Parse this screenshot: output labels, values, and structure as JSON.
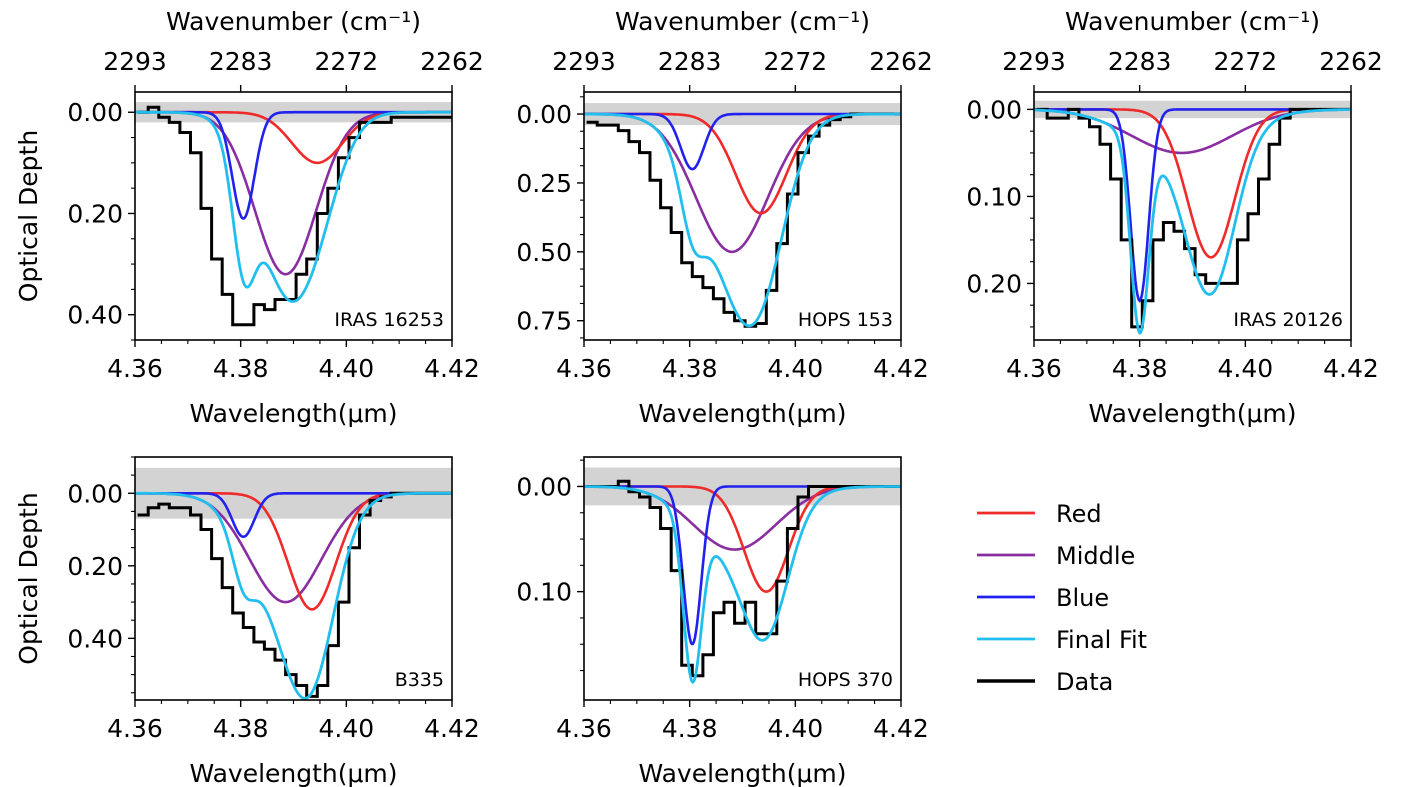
{
  "colors": {
    "red": "#ee2a2a",
    "middle": "#882ea0",
    "blue": "#2222ee",
    "final": "#22bfee",
    "data": "#000000",
    "band": "#d3d3d3"
  },
  "legend": {
    "placement": "right",
    "items": [
      {
        "key": "red",
        "label": "Red"
      },
      {
        "key": "middle",
        "label": "Middle"
      },
      {
        "key": "blue",
        "label": "Blue"
      },
      {
        "key": "final",
        "label": "Final Fit"
      },
      {
        "key": "data",
        "label": "Data"
      }
    ]
  },
  "chart_data": [
    {
      "type": "line",
      "panel": 1,
      "source": "IRAS 16253",
      "xlabel": "Wavelength(μm)",
      "ylabel": "Optical Depth",
      "top_xlabel": "Wavenumber (cm⁻¹)",
      "top_ticks": [
        "2293",
        "2283",
        "2272",
        "2262"
      ],
      "x_ticks": [
        "4.36",
        "4.38",
        "4.40",
        "4.42"
      ],
      "y_ticks": [
        "0.00",
        "0.20",
        "0.40"
      ],
      "xlim": [
        4.36,
        4.42
      ],
      "ylim": [
        0.45,
        -0.04
      ],
      "y_tick_values": [
        0,
        0.2,
        0.4
      ],
      "noise_band": [
        -0.02,
        0.02
      ],
      "components": {
        "red": {
          "center": 4.3945,
          "sigma": 0.0048,
          "depth": 0.1
        },
        "middle": {
          "center": 4.3885,
          "sigma": 0.0058,
          "depth": 0.32
        },
        "blue": {
          "center": 4.3805,
          "sigma": 0.0021,
          "depth": 0.21
        }
      },
      "data_x": [
        4.3605,
        4.3625,
        4.3645,
        4.3665,
        4.3685,
        4.3705,
        4.3725,
        4.3745,
        4.3765,
        4.3785,
        4.3805,
        4.3825,
        4.3845,
        4.3865,
        4.3885,
        4.3905,
        4.3925,
        4.3945,
        4.3965,
        4.3985,
        4.4005,
        4.4025,
        4.4045,
        4.4065,
        4.4085,
        4.4105,
        4.4125
      ],
      "data_y": [
        0.0,
        -0.01,
        0.01,
        0.02,
        0.04,
        0.08,
        0.19,
        0.29,
        0.36,
        0.42,
        0.42,
        0.38,
        0.39,
        0.37,
        0.37,
        0.32,
        0.29,
        0.2,
        0.15,
        0.09,
        0.05,
        0.02,
        0.02,
        0.02,
        0.01,
        0.01,
        0.01
      ]
    },
    {
      "type": "line",
      "panel": 2,
      "source": "HOPS 153",
      "xlabel": "Wavelength(μm)",
      "ylabel": "",
      "top_xlabel": "Wavenumber (cm⁻¹)",
      "top_ticks": [
        "2293",
        "2283",
        "2272",
        "2262"
      ],
      "x_ticks": [
        "4.36",
        "4.38",
        "4.40",
        "4.42"
      ],
      "y_ticks": [
        "0.00",
        "0.25",
        "0.50",
        "0.75"
      ],
      "xlim": [
        4.36,
        4.42
      ],
      "ylim": [
        0.82,
        -0.08
      ],
      "y_tick_values": [
        0,
        0.25,
        0.5,
        0.75
      ],
      "noise_band": [
        -0.04,
        0.04
      ],
      "components": {
        "red": {
          "center": 4.3935,
          "sigma": 0.0048,
          "depth": 0.36
        },
        "middle": {
          "center": 4.388,
          "sigma": 0.0068,
          "depth": 0.5
        },
        "blue": {
          "center": 4.3805,
          "sigma": 0.0022,
          "depth": 0.2
        }
      },
      "data_x": [
        4.3605,
        4.3625,
        4.3645,
        4.3665,
        4.3685,
        4.3705,
        4.3725,
        4.3745,
        4.3765,
        4.3785,
        4.3805,
        4.3825,
        4.3845,
        4.3865,
        4.3885,
        4.3905,
        4.3925,
        4.3945,
        4.3965,
        4.3985,
        4.4005,
        4.4025,
        4.4045,
        4.4065,
        4.4085,
        4.4105,
        4.4125
      ],
      "data_y": [
        0.03,
        0.04,
        0.04,
        0.06,
        0.1,
        0.14,
        0.24,
        0.34,
        0.43,
        0.54,
        0.59,
        0.63,
        0.67,
        0.72,
        0.75,
        0.77,
        0.76,
        0.64,
        0.47,
        0.29,
        0.14,
        0.08,
        0.04,
        0.02,
        0.01,
        0.0,
        0.0
      ]
    },
    {
      "type": "line",
      "panel": 3,
      "source": "IRAS 20126",
      "xlabel": "Wavelength(μm)",
      "ylabel": "",
      "top_xlabel": "Wavenumber (cm⁻¹)",
      "top_ticks": [
        "2293",
        "2283",
        "2272",
        "2262"
      ],
      "x_ticks": [
        "4.36",
        "4.38",
        "4.40",
        "4.42"
      ],
      "y_ticks": [
        "0.00",
        "0.10",
        "0.20"
      ],
      "xlim": [
        4.36,
        4.42
      ],
      "ylim": [
        0.265,
        -0.02
      ],
      "y_tick_values": [
        0,
        0.1,
        0.2
      ],
      "noise_band": [
        -0.01,
        0.01
      ],
      "components": {
        "red": {
          "center": 4.3935,
          "sigma": 0.0045,
          "depth": 0.17
        },
        "middle": {
          "center": 4.388,
          "sigma": 0.0095,
          "depth": 0.05
        },
        "blue": {
          "center": 4.38,
          "sigma": 0.0017,
          "depth": 0.22
        }
      },
      "data_x": [
        4.3605,
        4.3625,
        4.3645,
        4.3665,
        4.3685,
        4.3705,
        4.3725,
        4.3745,
        4.3765,
        4.3785,
        4.3805,
        4.3825,
        4.3845,
        4.3865,
        4.3885,
        4.3905,
        4.3925,
        4.3945,
        4.3965,
        4.3985,
        4.4005,
        4.4025,
        4.4045,
        4.4065,
        4.4085,
        4.4105,
        4.4125
      ],
      "data_y": [
        0.0,
        0.01,
        0.01,
        0.0,
        0.01,
        0.02,
        0.04,
        0.08,
        0.15,
        0.25,
        0.22,
        0.15,
        0.13,
        0.14,
        0.16,
        0.19,
        0.2,
        0.2,
        0.2,
        0.15,
        0.12,
        0.08,
        0.04,
        0.01,
        0.0,
        0.0,
        0.0
      ]
    },
    {
      "type": "line",
      "panel": 4,
      "source": "B335",
      "xlabel": "Wavelength(μm)",
      "ylabel": "Optical Depth",
      "x_ticks": [
        "4.36",
        "4.38",
        "4.40",
        "4.42"
      ],
      "y_ticks": [
        "0.00",
        "0.20",
        "0.40"
      ],
      "xlim": [
        4.36,
        4.42
      ],
      "ylim": [
        0.57,
        -0.1
      ],
      "y_tick_values": [
        0,
        0.2,
        0.4
      ],
      "noise_band": [
        -0.07,
        0.07
      ],
      "components": {
        "red": {
          "center": 4.3935,
          "sigma": 0.0045,
          "depth": 0.32
        },
        "middle": {
          "center": 4.3885,
          "sigma": 0.0068,
          "depth": 0.3
        },
        "blue": {
          "center": 4.3805,
          "sigma": 0.0021,
          "depth": 0.12
        }
      },
      "data_x": [
        4.3605,
        4.3625,
        4.3645,
        4.3665,
        4.3685,
        4.3705,
        4.3725,
        4.3745,
        4.3765,
        4.3785,
        4.3805,
        4.3825,
        4.3845,
        4.3865,
        4.3885,
        4.3905,
        4.3925,
        4.3945,
        4.3965,
        4.3985,
        4.4005,
        4.4025,
        4.4045,
        4.4065,
        4.4085,
        4.4105,
        4.4125
      ],
      "data_y": [
        0.06,
        0.04,
        0.03,
        0.04,
        0.04,
        0.06,
        0.1,
        0.18,
        0.26,
        0.33,
        0.37,
        0.41,
        0.43,
        0.46,
        0.5,
        0.53,
        0.56,
        0.53,
        0.42,
        0.3,
        0.15,
        0.06,
        0.02,
        0.01,
        0.0,
        0.0,
        0.0
      ]
    },
    {
      "type": "line",
      "panel": 5,
      "source": "HOPS 370",
      "xlabel": "Wavelength(μm)",
      "ylabel": "",
      "x_ticks": [
        "4.36",
        "4.38",
        "4.40",
        "4.42"
      ],
      "y_ticks": [
        "0.00",
        "0.10"
      ],
      "xlim": [
        4.36,
        4.42
      ],
      "ylim": [
        0.203,
        -0.028
      ],
      "y_tick_values": [
        0,
        0.1
      ],
      "noise_band": [
        -0.018,
        0.018
      ],
      "components": {
        "red": {
          "center": 4.3945,
          "sigma": 0.0042,
          "depth": 0.1
        },
        "middle": {
          "center": 4.3885,
          "sigma": 0.0078,
          "depth": 0.06
        },
        "blue": {
          "center": 4.3805,
          "sigma": 0.0017,
          "depth": 0.15
        }
      },
      "data_x": [
        4.3605,
        4.3625,
        4.3645,
        4.3665,
        4.3685,
        4.3705,
        4.3725,
        4.3745,
        4.3765,
        4.3785,
        4.3805,
        4.3825,
        4.3845,
        4.3865,
        4.3885,
        4.3905,
        4.3925,
        4.3945,
        4.3965,
        4.3985,
        4.4005,
        4.4025,
        4.4045,
        4.4065,
        4.4085,
        4.4105,
        4.4125
      ],
      "data_y": [
        0.0,
        0.0,
        0.0,
        -0.005,
        0.005,
        0.01,
        0.02,
        0.04,
        0.08,
        0.17,
        0.18,
        0.16,
        0.12,
        0.11,
        0.13,
        0.11,
        0.14,
        0.14,
        0.09,
        0.04,
        0.01,
        0.0,
        0.0,
        0.0,
        0.0,
        0.0,
        0.0
      ]
    }
  ]
}
